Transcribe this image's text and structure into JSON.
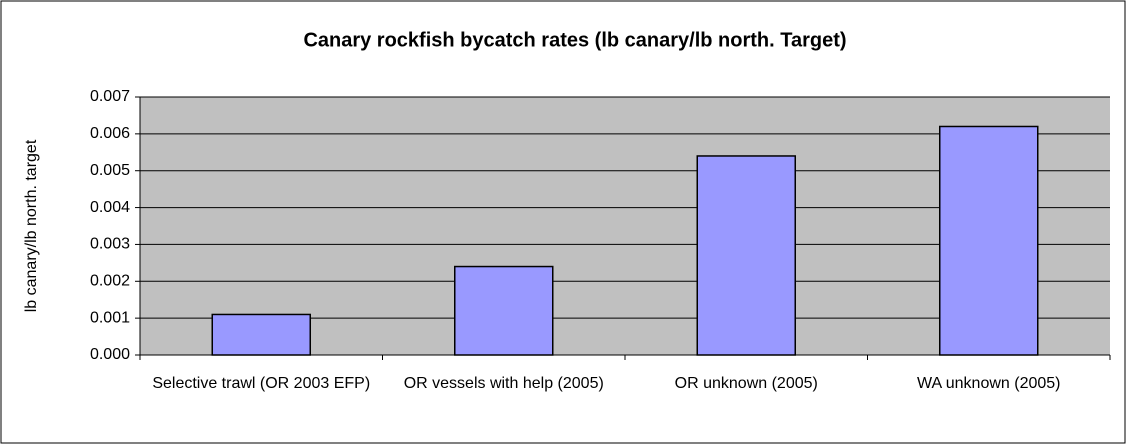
{
  "chart_data": {
    "type": "bar",
    "title": "Canary rockfish bycatch rates (lb canary/lb north. Target)",
    "y_label": "lb canary/lb north. target",
    "categories": [
      "Selective trawl (OR 2003 EFP)",
      "OR vessels with help (2005)",
      "OR unknown (2005)",
      "WA unknown (2005)"
    ],
    "values": [
      0.0011,
      0.0024,
      0.0054,
      0.0062
    ],
    "color": "#9999ff",
    "ylim": [
      0,
      0.007
    ],
    "yticks": [
      {
        "value": 0,
        "label": "0.000"
      },
      0.001,
      0.002,
      0.003,
      0.004,
      0.005,
      0.006,
      0.007
    ],
    "grid": true
  }
}
